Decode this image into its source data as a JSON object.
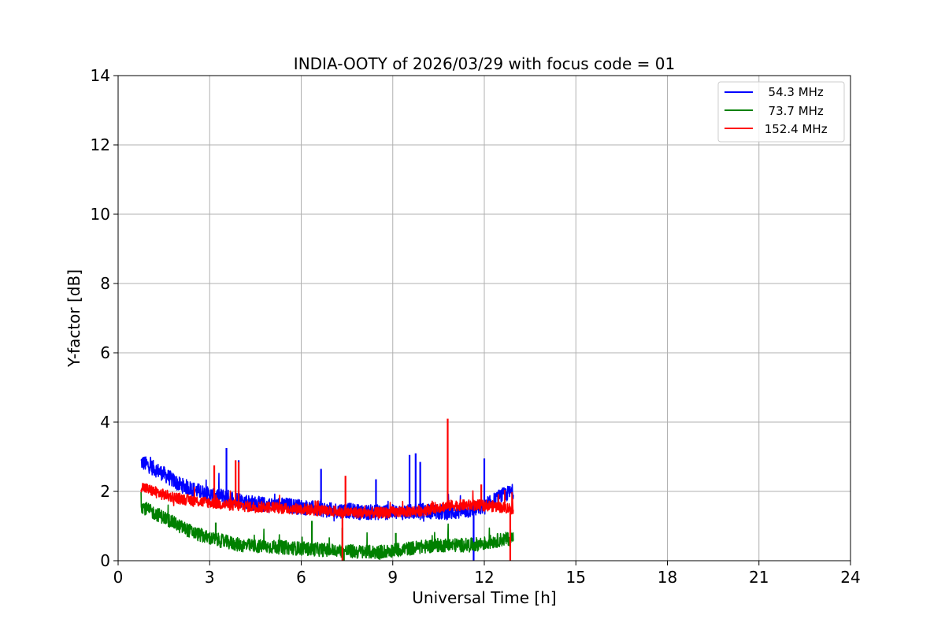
{
  "chart_data": {
    "type": "line",
    "title": "INDIA-OOTY of 2026/03/29 with focus code = 01",
    "xlabel": "Universal Time [h]",
    "ylabel": "Y-factor [dB]",
    "xlim": [
      0,
      24
    ],
    "ylim": [
      0,
      14
    ],
    "xticks": [
      0,
      3,
      6,
      9,
      12,
      15,
      18,
      21,
      24
    ],
    "yticks": [
      0,
      2,
      4,
      6,
      8,
      10,
      12,
      14
    ],
    "grid": true,
    "legend_position": "top-right",
    "series": [
      {
        "name": "54.3 MHz",
        "legend_label": "  54.3 MHz",
        "color": "#0000ff",
        "x": [
          0.75,
          1.0,
          1.5,
          2.0,
          2.5,
          3.0,
          3.5,
          4.0,
          4.5,
          5.0,
          5.5,
          6.0,
          6.5,
          7.0,
          7.5,
          8.0,
          8.5,
          9.0,
          9.5,
          10.0,
          10.5,
          11.0,
          11.5,
          12.0,
          12.5,
          12.95
        ],
        "values": [
          2.85,
          2.75,
          2.5,
          2.2,
          2.05,
          1.9,
          1.85,
          1.75,
          1.65,
          1.6,
          1.6,
          1.55,
          1.5,
          1.45,
          1.45,
          1.4,
          1.4,
          1.4,
          1.4,
          1.45,
          1.4,
          1.4,
          1.45,
          1.55,
          1.85,
          2.0
        ],
        "spikes": [
          [
            3.55,
            3.25
          ],
          [
            3.95,
            2.9
          ],
          [
            6.65,
            2.65
          ],
          [
            8.45,
            2.35
          ],
          [
            9.55,
            3.05
          ],
          [
            9.75,
            3.1
          ],
          [
            9.9,
            2.85
          ],
          [
            11.65,
            0.0
          ],
          [
            12.0,
            2.95
          ]
        ]
      },
      {
        "name": "73.7 MHz",
        "legend_label": "  73.7 MHz",
        "color": "#008000",
        "x": [
          0.75,
          1.0,
          1.5,
          2.0,
          2.5,
          3.0,
          3.5,
          4.0,
          4.5,
          5.0,
          5.5,
          6.0,
          6.5,
          7.0,
          7.5,
          8.0,
          8.5,
          9.0,
          9.5,
          10.0,
          10.5,
          11.0,
          11.5,
          12.0,
          12.5,
          12.95
        ],
        "values": [
          1.6,
          1.45,
          1.25,
          1.0,
          0.8,
          0.65,
          0.55,
          0.45,
          0.42,
          0.4,
          0.38,
          0.35,
          0.33,
          0.3,
          0.28,
          0.25,
          0.25,
          0.3,
          0.35,
          0.4,
          0.45,
          0.45,
          0.45,
          0.5,
          0.6,
          0.65
        ],
        "spikes": [
          [
            3.2,
            1.1
          ],
          [
            6.35,
            1.15
          ],
          [
            7.35,
            0.95
          ],
          [
            7.4,
            0.0
          ],
          [
            9.1,
            0.8
          ]
        ]
      },
      {
        "name": "152.4 MHz",
        "legend_label": " 152.4 MHz",
        "color": "#ff0000",
        "x": [
          0.75,
          1.0,
          1.5,
          2.0,
          2.5,
          3.0,
          3.5,
          4.0,
          4.5,
          5.0,
          5.5,
          6.0,
          6.5,
          7.0,
          7.5,
          8.0,
          8.5,
          9.0,
          9.5,
          10.0,
          10.5,
          11.0,
          11.5,
          12.0,
          12.5,
          12.95
        ],
        "values": [
          2.15,
          2.05,
          1.9,
          1.8,
          1.72,
          1.68,
          1.62,
          1.58,
          1.55,
          1.55,
          1.5,
          1.5,
          1.45,
          1.42,
          1.4,
          1.38,
          1.38,
          1.4,
          1.42,
          1.45,
          1.55,
          1.6,
          1.6,
          1.6,
          1.55,
          1.5
        ],
        "spikes": [
          [
            3.15,
            2.75
          ],
          [
            3.85,
            2.9
          ],
          [
            3.95,
            2.85
          ],
          [
            7.45,
            2.45
          ],
          [
            7.35,
            0.0
          ],
          [
            10.8,
            4.1
          ],
          [
            11.9,
            2.2
          ],
          [
            12.85,
            0.0
          ]
        ]
      }
    ]
  }
}
